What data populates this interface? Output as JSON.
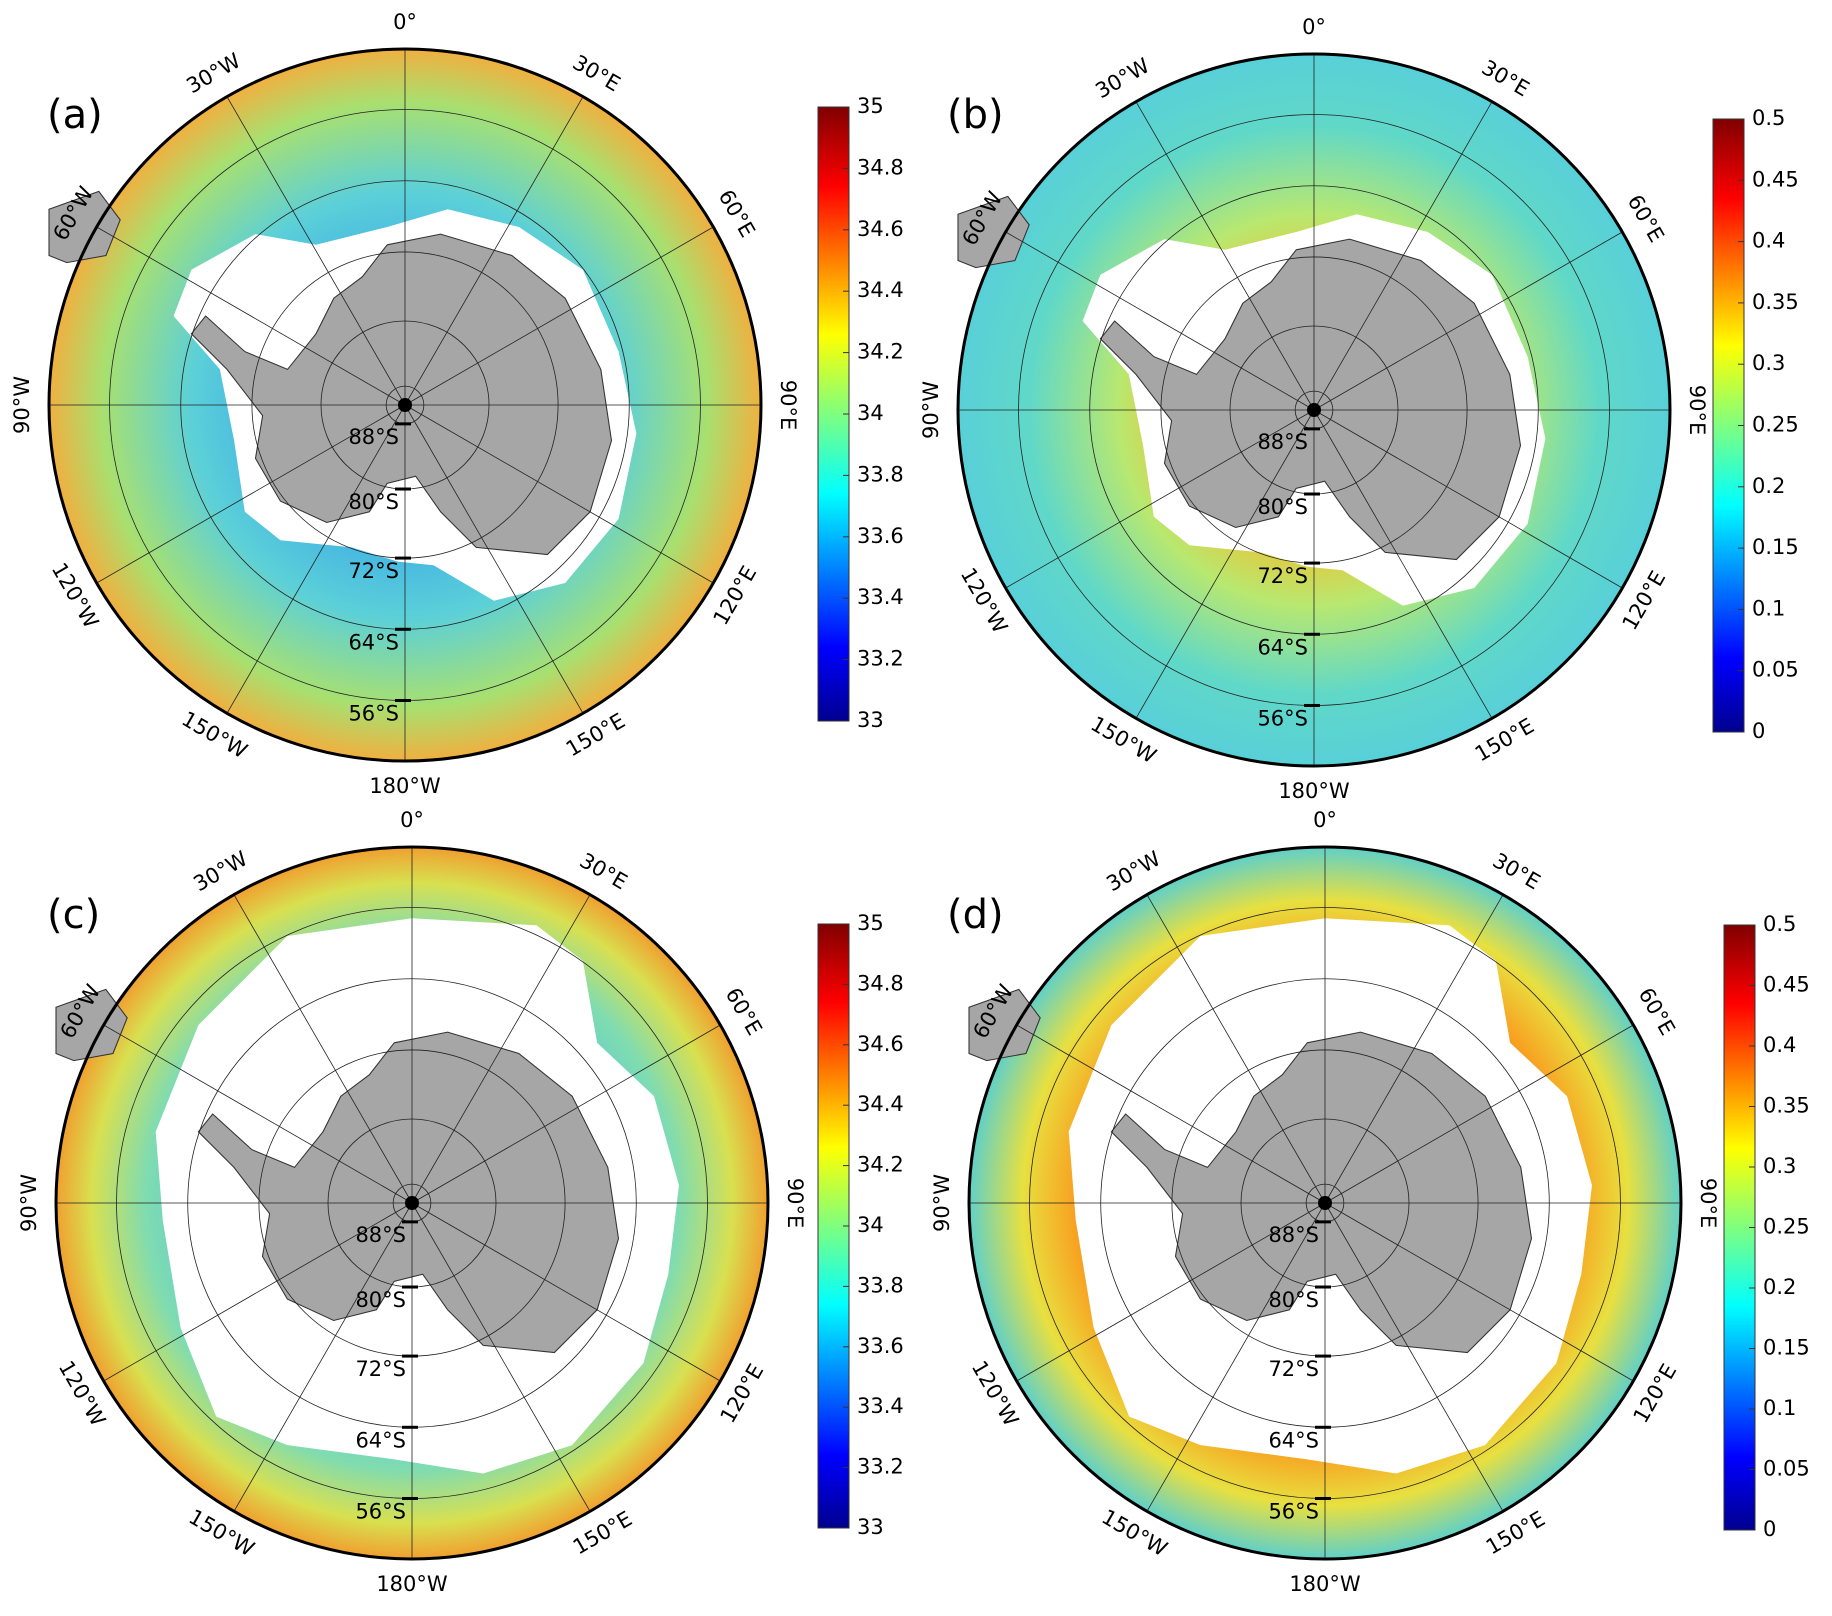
{
  "panels": [
    {
      "label": "(a)",
      "colorbar": {
        "lim": [
          33,
          35
        ],
        "ticks": [
          33,
          33.2,
          33.4,
          33.6,
          33.8,
          34,
          34.2,
          34.4,
          34.6,
          34.8,
          35
        ]
      }
    },
    {
      "label": "(b)",
      "colorbar": {
        "lim": [
          0,
          0.5
        ],
        "ticks": [
          0,
          0.05,
          0.1,
          0.15,
          0.2,
          0.25,
          0.3,
          0.35,
          0.4,
          0.45,
          0.5
        ]
      }
    },
    {
      "label": "(c)",
      "colorbar": {
        "lim": [
          33,
          35
        ],
        "ticks": [
          33,
          33.2,
          33.4,
          33.6,
          33.8,
          34,
          34.2,
          34.4,
          34.6,
          34.8,
          35
        ]
      }
    },
    {
      "label": "(d)",
      "colorbar": {
        "lim": [
          0,
          0.5
        ],
        "ticks": [
          0,
          0.05,
          0.1,
          0.15,
          0.2,
          0.25,
          0.3,
          0.35,
          0.4,
          0.45,
          0.5
        ]
      }
    }
  ],
  "longitude_labels": [
    "0°",
    "30°E",
    "60°E",
    "90°E",
    "120°E",
    "150°E",
    "180°W",
    "150°W",
    "120°W",
    "90°W",
    "60°W",
    "30°W"
  ],
  "latitude_labels": [
    "88°S",
    "80°S",
    "72°S",
    "64°S",
    "56°S"
  ]
}
